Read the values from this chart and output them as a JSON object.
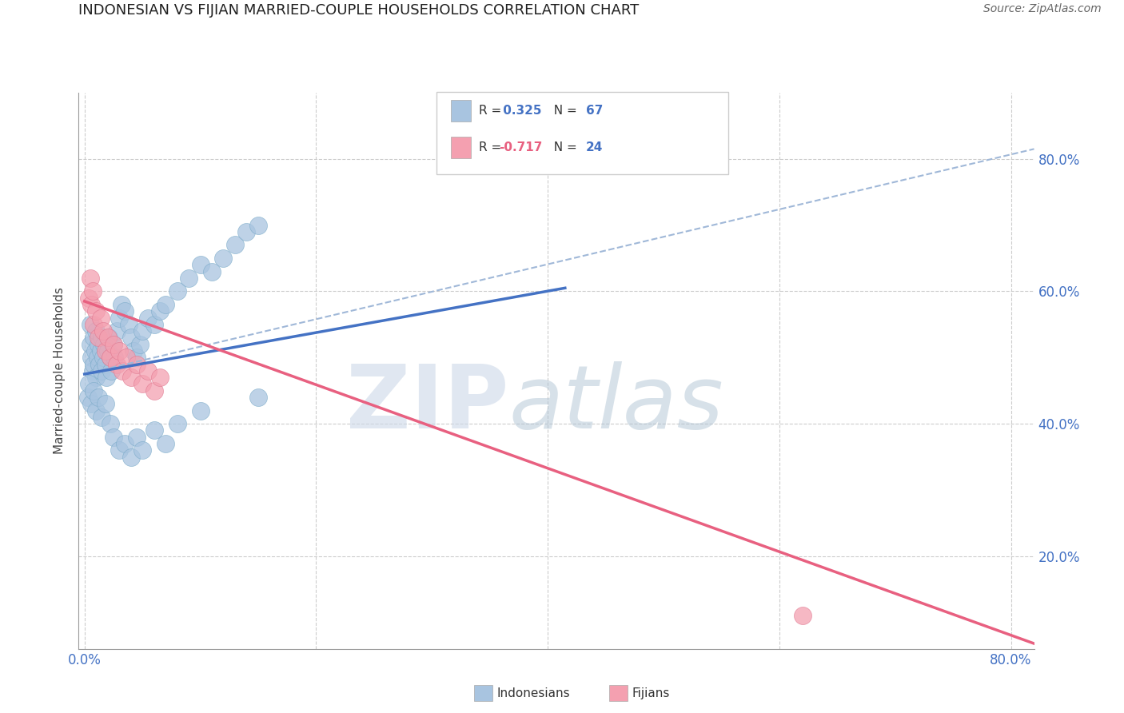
{
  "title": "INDONESIAN VS FIJIAN MARRIED-COUPLE HOUSEHOLDS CORRELATION CHART",
  "source": "Source: ZipAtlas.com",
  "ylabel": "Married-couple Households",
  "ytick_labels": [
    "20.0%",
    "40.0%",
    "60.0%",
    "80.0%"
  ],
  "ytick_values": [
    0.2,
    0.4,
    0.6,
    0.8
  ],
  "xtick_labels": [
    "0.0%",
    "",
    "",
    "",
    "80.0%"
  ],
  "xtick_values": [
    0.0,
    0.2,
    0.4,
    0.6,
    0.8
  ],
  "xlim": [
    -0.005,
    0.82
  ],
  "ylim": [
    0.06,
    0.9
  ],
  "blue_scatter_color": "#a8c4e0",
  "blue_scatter_edge": "#7aaac8",
  "pink_scatter_color": "#f4a0b0",
  "pink_scatter_edge": "#e07890",
  "blue_line_color": "#4472c4",
  "pink_line_color": "#e86080",
  "dashed_line_color": "#a0b8d8",
  "title_fontsize": 13,
  "title_color": "#202020",
  "axis_label_color": "#4472c4",
  "r_blue_color": "#4472c4",
  "r_pink_color": "#e86080",
  "n_color": "#4472c4",
  "indonesian_x": [
    0.005,
    0.005,
    0.006,
    0.007,
    0.008,
    0.008,
    0.009,
    0.01,
    0.01,
    0.011,
    0.012,
    0.013,
    0.014,
    0.015,
    0.015,
    0.016,
    0.017,
    0.018,
    0.019,
    0.02,
    0.021,
    0.022,
    0.023,
    0.025,
    0.026,
    0.028,
    0.03,
    0.032,
    0.035,
    0.038,
    0.04,
    0.042,
    0.045,
    0.048,
    0.05,
    0.055,
    0.06,
    0.065,
    0.07,
    0.08,
    0.09,
    0.1,
    0.11,
    0.12,
    0.13,
    0.14,
    0.15,
    0.003,
    0.004,
    0.006,
    0.008,
    0.01,
    0.012,
    0.015,
    0.018,
    0.022,
    0.025,
    0.03,
    0.035,
    0.04,
    0.045,
    0.05,
    0.06,
    0.07,
    0.08,
    0.1,
    0.15
  ],
  "indonesian_y": [
    0.55,
    0.52,
    0.5,
    0.48,
    0.53,
    0.49,
    0.51,
    0.47,
    0.54,
    0.5,
    0.52,
    0.49,
    0.51,
    0.53,
    0.48,
    0.5,
    0.52,
    0.49,
    0.47,
    0.51,
    0.53,
    0.5,
    0.48,
    0.52,
    0.5,
    0.54,
    0.56,
    0.58,
    0.57,
    0.55,
    0.53,
    0.51,
    0.5,
    0.52,
    0.54,
    0.56,
    0.55,
    0.57,
    0.58,
    0.6,
    0.62,
    0.64,
    0.63,
    0.65,
    0.67,
    0.69,
    0.7,
    0.44,
    0.46,
    0.43,
    0.45,
    0.42,
    0.44,
    0.41,
    0.43,
    0.4,
    0.38,
    0.36,
    0.37,
    0.35,
    0.38,
    0.36,
    0.39,
    0.37,
    0.4,
    0.42,
    0.44
  ],
  "fijian_x": [
    0.004,
    0.005,
    0.006,
    0.007,
    0.008,
    0.01,
    0.012,
    0.014,
    0.016,
    0.018,
    0.02,
    0.022,
    0.025,
    0.028,
    0.03,
    0.033,
    0.036,
    0.04,
    0.045,
    0.05,
    0.055,
    0.06,
    0.065,
    0.62
  ],
  "fijian_y": [
    0.59,
    0.62,
    0.58,
    0.6,
    0.55,
    0.57,
    0.53,
    0.56,
    0.54,
    0.51,
    0.53,
    0.5,
    0.52,
    0.49,
    0.51,
    0.48,
    0.5,
    0.47,
    0.49,
    0.46,
    0.48,
    0.45,
    0.47,
    0.11
  ],
  "blue_trendline_x": [
    0.0,
    0.415
  ],
  "blue_trendline_y": [
    0.475,
    0.605
  ],
  "dashed_line_x": [
    0.0,
    0.82
  ],
  "dashed_line_y": [
    0.475,
    0.815
  ],
  "pink_trendline_x": [
    0.0,
    0.82
  ],
  "pink_trendline_y": [
    0.585,
    0.068
  ]
}
